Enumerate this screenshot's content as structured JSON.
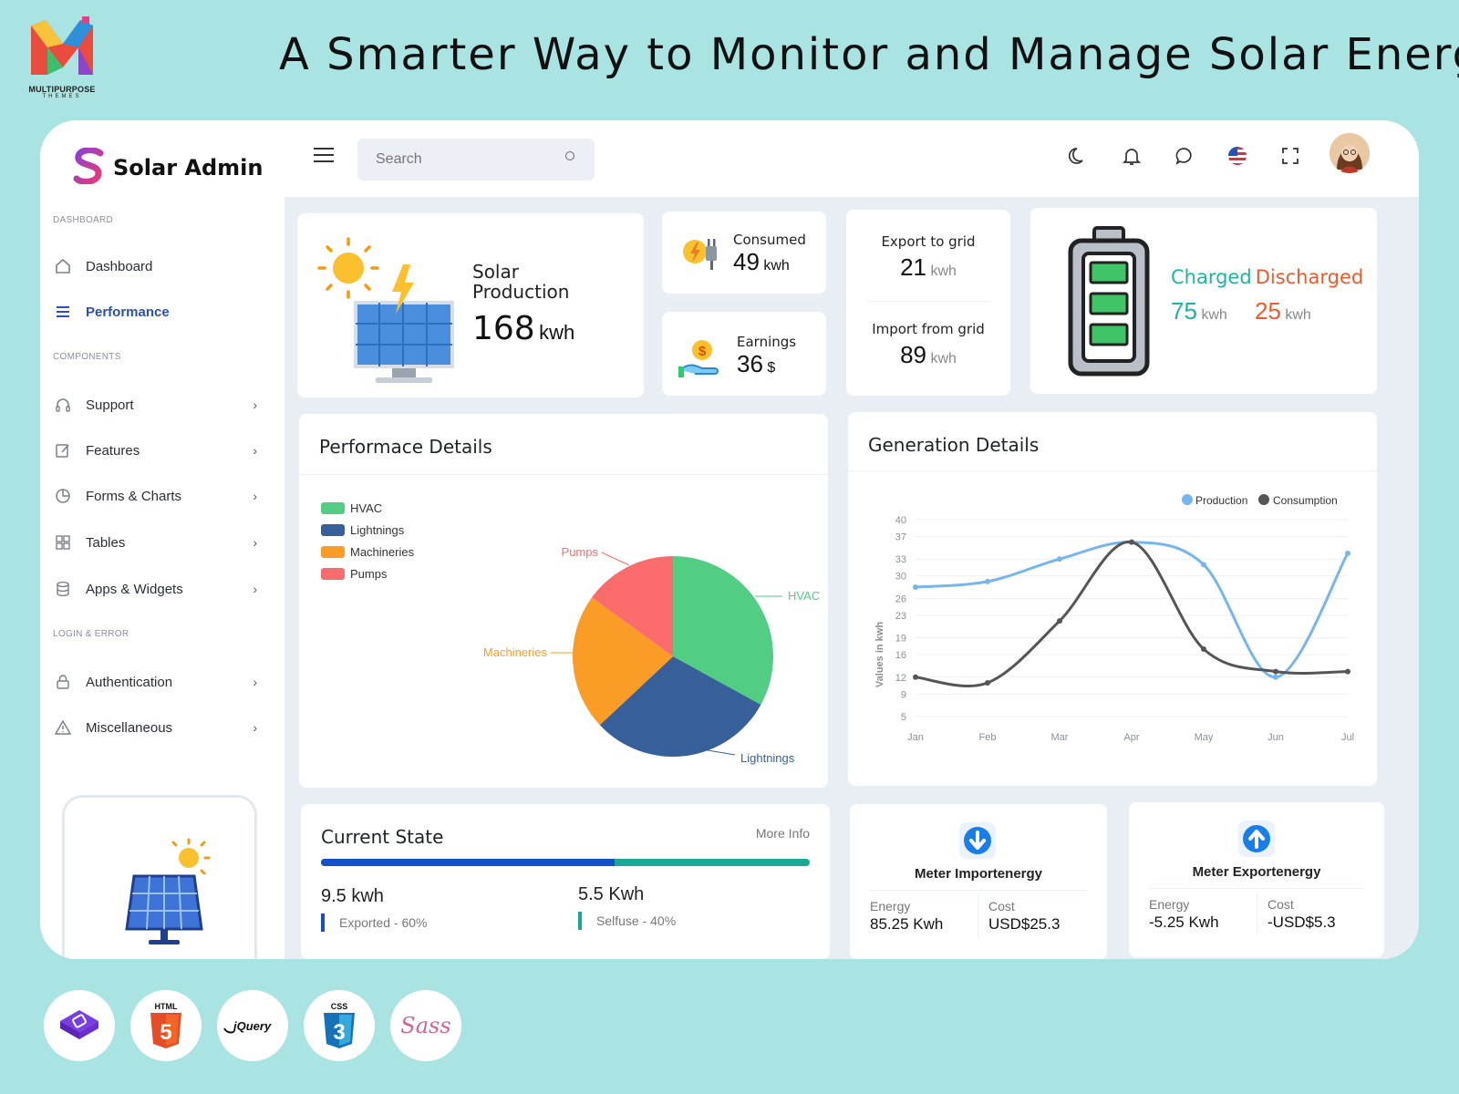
{
  "brand": {
    "name": "MULTIPURPOSE",
    "sub": "THEMES"
  },
  "headline": "A Smarter Way to Monitor and Manage Solar Energy",
  "app": {
    "name": "Solar Admin"
  },
  "search": {
    "placeholder": "Search"
  },
  "sidebar": {
    "section_dashboard": "DASHBOARD",
    "section_components": "COMPONENTS",
    "section_login": "LOGIN & ERROR",
    "items": [
      {
        "label": "Dashboard",
        "icon": "home-icon"
      },
      {
        "label": "Performance",
        "icon": "list-icon",
        "active": true
      },
      {
        "label": "Support",
        "icon": "headphones-icon"
      },
      {
        "label": "Features",
        "icon": "edit-icon"
      },
      {
        "label": "Forms & Charts",
        "icon": "pie-icon"
      },
      {
        "label": "Tables",
        "icon": "grid-icon"
      },
      {
        "label": "Apps & Widgets",
        "icon": "database-icon"
      },
      {
        "label": "Authentication",
        "icon": "lock-icon"
      },
      {
        "label": "Miscellaneous",
        "icon": "warning-icon"
      }
    ]
  },
  "stats": {
    "solar_label_1": "Solar",
    "solar_label_2": "Production",
    "solar_value": "168",
    "solar_unit": "kwh",
    "consumed_label": "Consumed",
    "consumed_value": "49",
    "consumed_unit": "kwh",
    "earnings_label": "Earnings",
    "earnings_value": "36",
    "earnings_unit": "$",
    "export_label": "Export to grid",
    "export_value": "21",
    "export_unit": "kwh",
    "import_label": "Import from grid",
    "import_value": "89",
    "import_unit": "kwh",
    "charged_label": "Charged",
    "discharged_label": "Discharged",
    "charged_value": "75",
    "charged_unit": "kwh",
    "discharged_value": "25",
    "discharged_unit": "kwh"
  },
  "performance": {
    "title": "Performace Details",
    "legend": [
      {
        "name": "HVAC",
        "color": "#52cd84"
      },
      {
        "name": "Lightnings",
        "color": "#37609a"
      },
      {
        "name": "Machineries",
        "color": "#fb9c27"
      },
      {
        "name": "Pumps",
        "color": "#fa6b6b"
      }
    ]
  },
  "generation": {
    "title": "Generation Details",
    "legend_production": "Production",
    "legend_consumption": "Consumption",
    "ylabel": "Values in kwh"
  },
  "current_state": {
    "title": "Current State",
    "more": "More Info",
    "progress_exported": 0.6,
    "left_value": "9.5 kwh",
    "left_label": "Exported - 60%",
    "right_value": "5.5 Kwh",
    "right_label": "Selfuse - 40%"
  },
  "meter_import": {
    "title": "Meter Importenergy",
    "energy_label": "Energy",
    "energy_value": "85.25 Kwh",
    "cost_label": "Cost",
    "cost_value": "USD$25.3"
  },
  "meter_export": {
    "title": "Meter Exportenergy",
    "energy_label": "Energy",
    "energy_value": "-5.25 Kwh",
    "cost_label": "Cost",
    "cost_value": "-USD$5.3"
  },
  "tech_badges": [
    "bootstrap-icon",
    "html5-icon",
    "jquery-icon",
    "css3-icon",
    "sass-icon"
  ],
  "tech_text": {
    "html": "HTML",
    "jquery": "jQuery",
    "css": "CSS",
    "sass": "Sass"
  },
  "chart_data": [
    {
      "type": "pie",
      "title": "Performace Details",
      "categories": [
        "HVAC",
        "Lightnings",
        "Machineries",
        "Pumps"
      ],
      "values": [
        33,
        30,
        22,
        15
      ],
      "colors": [
        "#52cd84",
        "#37609a",
        "#fb9c27",
        "#fa6b6b"
      ],
      "legend": "top-left"
    },
    {
      "type": "line",
      "title": "Generation Details",
      "categories": [
        "Jan",
        "Feb",
        "Mar",
        "Apr",
        "May",
        "Jun",
        "Jul"
      ],
      "series": [
        {
          "name": "Production",
          "values": [
            28,
            29,
            33,
            36,
            32,
            12,
            34
          ],
          "color": "#76b6ea"
        },
        {
          "name": "Consumption",
          "values": [
            12,
            11,
            22,
            36,
            17,
            13,
            13
          ],
          "color": "#555555"
        }
      ],
      "yticks": [
        5,
        9,
        12,
        16,
        19,
        23,
        26,
        30,
        33,
        37,
        40
      ],
      "ylim": [
        5,
        40
      ],
      "ylabel": "Values in kwh",
      "grid": true,
      "legend": "top-right"
    }
  ]
}
